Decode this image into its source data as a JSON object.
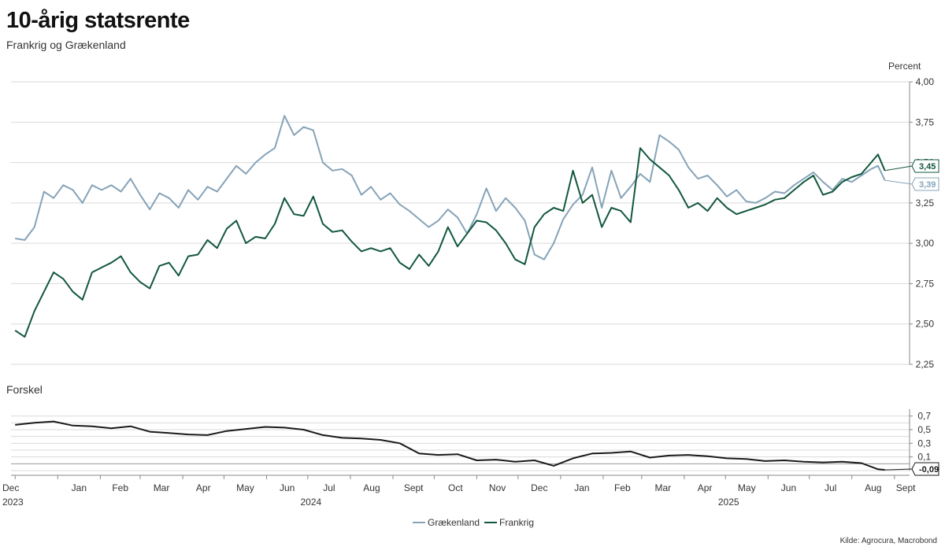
{
  "header": {
    "title": "10-årig statsrente",
    "subtitle": "Frankrig og Grækenland"
  },
  "source": "Kilde: Agrocura, Macrobond",
  "colors": {
    "greece": "#86a3b8",
    "france": "#12573d",
    "spread": "#1a1a1a",
    "grid": "#d9d9d9",
    "axis": "#888888"
  },
  "chart_data": [
    {
      "id": "main",
      "type": "line",
      "ylabel": "Percent",
      "ylim": [
        2.25,
        4.0
      ],
      "yticks": [
        "4,00",
        "3,75",
        "3,50",
        "3,25",
        "3,00",
        "2,75",
        "2,50",
        "2,25"
      ],
      "ytick_values": [
        4.0,
        3.75,
        3.5,
        3.25,
        3.0,
        2.75,
        2.5,
        2.25
      ],
      "x_range": [
        "2023-12-01",
        "2025-08-25"
      ],
      "grid": true,
      "legend": "bottom-center",
      "series": [
        {
          "name": "Grækenland",
          "color": "#86a3b8",
          "end_label": "3,39",
          "x": [
            "2023-12-01",
            "2023-12-08",
            "2023-12-15",
            "2023-12-22",
            "2023-12-29",
            "2024-01-05",
            "2024-01-12",
            "2024-01-19",
            "2024-01-26",
            "2024-02-02",
            "2024-02-09",
            "2024-02-16",
            "2024-02-23",
            "2024-03-01",
            "2024-03-08",
            "2024-03-15",
            "2024-03-22",
            "2024-03-29",
            "2024-04-05",
            "2024-04-12",
            "2024-04-19",
            "2024-04-26",
            "2024-05-03",
            "2024-05-10",
            "2024-05-17",
            "2024-05-24",
            "2024-05-31",
            "2024-06-07",
            "2024-06-14",
            "2024-06-21",
            "2024-06-28",
            "2024-07-05",
            "2024-07-12",
            "2024-07-19",
            "2024-07-26",
            "2024-08-02",
            "2024-08-09",
            "2024-08-16",
            "2024-08-23",
            "2024-08-30",
            "2024-09-06",
            "2024-09-13",
            "2024-09-20",
            "2024-09-27",
            "2024-10-04",
            "2024-10-11",
            "2024-10-18",
            "2024-10-25",
            "2024-11-01",
            "2024-11-08",
            "2024-11-15",
            "2024-11-22",
            "2024-11-29",
            "2024-12-06",
            "2024-12-13",
            "2024-12-20",
            "2024-12-27",
            "2025-01-03",
            "2025-01-10",
            "2025-01-17",
            "2025-01-24",
            "2025-01-31",
            "2025-02-07",
            "2025-02-14",
            "2025-02-21",
            "2025-02-28",
            "2025-03-07",
            "2025-03-14",
            "2025-03-21",
            "2025-03-28",
            "2025-04-04",
            "2025-04-11",
            "2025-04-18",
            "2025-04-25",
            "2025-05-02",
            "2025-05-09",
            "2025-05-16",
            "2025-05-23",
            "2025-05-30",
            "2025-06-06",
            "2025-06-13",
            "2025-06-20",
            "2025-06-27",
            "2025-07-04",
            "2025-07-11",
            "2025-07-18",
            "2025-07-25",
            "2025-08-01",
            "2025-08-08",
            "2025-08-15",
            "2025-08-20",
            "2025-08-25"
          ],
          "values": [
            3.03,
            3.02,
            3.1,
            3.32,
            3.28,
            3.36,
            3.33,
            3.25,
            3.36,
            3.33,
            3.36,
            3.32,
            3.4,
            3.3,
            3.21,
            3.31,
            3.28,
            3.22,
            3.33,
            3.27,
            3.35,
            3.32,
            3.4,
            3.48,
            3.43,
            3.5,
            3.55,
            3.59,
            3.79,
            3.67,
            3.72,
            3.7,
            3.5,
            3.45,
            3.46,
            3.42,
            3.3,
            3.35,
            3.27,
            3.31,
            3.24,
            3.2,
            3.15,
            3.1,
            3.14,
            3.21,
            3.16,
            3.06,
            3.18,
            3.34,
            3.2,
            3.28,
            3.22,
            3.14,
            2.93,
            2.9,
            3.0,
            3.15,
            3.24,
            3.3,
            3.47,
            3.22,
            3.45,
            3.28,
            3.35,
            3.43,
            3.38,
            3.67,
            3.63,
            3.58,
            3.47,
            3.4,
            3.42,
            3.36,
            3.29,
            3.33,
            3.26,
            3.25,
            3.28,
            3.32,
            3.31,
            3.36,
            3.4,
            3.44,
            3.38,
            3.33,
            3.4,
            3.38,
            3.42,
            3.46,
            3.48,
            3.39
          ]
        },
        {
          "name": "Frankrig",
          "color": "#12573d",
          "end_label": "3,45",
          "x": [
            "2023-12-01",
            "2023-12-08",
            "2023-12-15",
            "2023-12-22",
            "2023-12-29",
            "2024-01-05",
            "2024-01-12",
            "2024-01-19",
            "2024-01-26",
            "2024-02-02",
            "2024-02-09",
            "2024-02-16",
            "2024-02-23",
            "2024-03-01",
            "2024-03-08",
            "2024-03-15",
            "2024-03-22",
            "2024-03-29",
            "2024-04-05",
            "2024-04-12",
            "2024-04-19",
            "2024-04-26",
            "2024-05-03",
            "2024-05-10",
            "2024-05-17",
            "2024-05-24",
            "2024-05-31",
            "2024-06-07",
            "2024-06-14",
            "2024-06-21",
            "2024-06-28",
            "2024-07-05",
            "2024-07-12",
            "2024-07-19",
            "2024-07-26",
            "2024-08-02",
            "2024-08-09",
            "2024-08-16",
            "2024-08-23",
            "2024-08-30",
            "2024-09-06",
            "2024-09-13",
            "2024-09-20",
            "2024-09-27",
            "2024-10-04",
            "2024-10-11",
            "2024-10-18",
            "2024-10-25",
            "2024-11-01",
            "2024-11-08",
            "2024-11-15",
            "2024-11-22",
            "2024-11-29",
            "2024-12-06",
            "2024-12-13",
            "2024-12-20",
            "2024-12-27",
            "2025-01-03",
            "2025-01-10",
            "2025-01-17",
            "2025-01-24",
            "2025-01-31",
            "2025-02-07",
            "2025-02-14",
            "2025-02-21",
            "2025-02-28",
            "2025-03-07",
            "2025-03-14",
            "2025-03-21",
            "2025-03-28",
            "2025-04-04",
            "2025-04-11",
            "2025-04-18",
            "2025-04-25",
            "2025-05-02",
            "2025-05-09",
            "2025-05-16",
            "2025-05-23",
            "2025-05-30",
            "2025-06-06",
            "2025-06-13",
            "2025-06-20",
            "2025-06-27",
            "2025-07-04",
            "2025-07-11",
            "2025-07-18",
            "2025-07-25",
            "2025-08-01",
            "2025-08-08",
            "2025-08-15",
            "2025-08-20",
            "2025-08-25"
          ],
          "values": [
            2.46,
            2.42,
            2.58,
            2.7,
            2.82,
            2.78,
            2.7,
            2.65,
            2.82,
            2.85,
            2.88,
            2.92,
            2.82,
            2.76,
            2.72,
            2.86,
            2.88,
            2.8,
            2.92,
            2.93,
            3.02,
            2.97,
            3.09,
            3.14,
            3.0,
            3.04,
            3.03,
            3.12,
            3.28,
            3.18,
            3.17,
            3.29,
            3.12,
            3.07,
            3.08,
            3.01,
            2.95,
            2.97,
            2.95,
            2.97,
            2.88,
            2.84,
            2.93,
            2.86,
            2.95,
            3.1,
            2.98,
            3.06,
            3.14,
            3.13,
            3.08,
            3.0,
            2.9,
            2.87,
            3.1,
            3.18,
            3.22,
            3.2,
            3.45,
            3.25,
            3.3,
            3.1,
            3.22,
            3.2,
            3.13,
            3.59,
            3.52,
            3.47,
            3.42,
            3.33,
            3.22,
            3.25,
            3.2,
            3.28,
            3.22,
            3.18,
            3.2,
            3.22,
            3.24,
            3.27,
            3.28,
            3.33,
            3.38,
            3.42,
            3.3,
            3.32,
            3.38,
            3.41,
            3.43,
            3.5,
            3.55,
            3.45
          ]
        }
      ]
    },
    {
      "id": "spread",
      "type": "line",
      "title": "Forskel",
      "ylim": [
        -0.1,
        0.8
      ],
      "yticks": [
        "0,7",
        "0,5",
        "0,3",
        "0,1"
      ],
      "ytick_values": [
        0.7,
        0.5,
        0.3,
        0.1
      ],
      "grid": true,
      "series": [
        {
          "name": "Forskel",
          "color": "#1a1a1a",
          "end_label": "-0,09",
          "x": [
            "2023-12-01",
            "2023-12-15",
            "2023-12-29",
            "2024-01-12",
            "2024-01-26",
            "2024-02-09",
            "2024-02-23",
            "2024-03-08",
            "2024-03-22",
            "2024-04-05",
            "2024-04-19",
            "2024-05-03",
            "2024-05-17",
            "2024-05-31",
            "2024-06-14",
            "2024-06-28",
            "2024-07-12",
            "2024-07-26",
            "2024-08-09",
            "2024-08-23",
            "2024-09-06",
            "2024-09-20",
            "2024-10-04",
            "2024-10-18",
            "2024-11-01",
            "2024-11-15",
            "2024-11-29",
            "2024-12-13",
            "2024-12-27",
            "2025-01-10",
            "2025-01-24",
            "2025-02-07",
            "2025-02-21",
            "2025-03-07",
            "2025-03-21",
            "2025-04-04",
            "2025-04-18",
            "2025-05-02",
            "2025-05-16",
            "2025-05-30",
            "2025-06-13",
            "2025-06-27",
            "2025-07-11",
            "2025-07-25",
            "2025-08-08",
            "2025-08-20",
            "2025-08-25"
          ],
          "values": [
            0.57,
            0.6,
            0.62,
            0.56,
            0.55,
            0.52,
            0.55,
            0.47,
            0.45,
            0.43,
            0.42,
            0.48,
            0.51,
            0.54,
            0.53,
            0.5,
            0.42,
            0.38,
            0.37,
            0.35,
            0.3,
            0.15,
            0.13,
            0.14,
            0.05,
            0.06,
            0.03,
            0.05,
            -0.03,
            0.08,
            0.15,
            0.16,
            0.18,
            0.09,
            0.12,
            0.13,
            0.11,
            0.08,
            0.07,
            0.04,
            0.05,
            0.03,
            0.02,
            0.03,
            0.01,
            -0.08,
            -0.09
          ]
        }
      ]
    }
  ],
  "x_axis": {
    "months": [
      {
        "label": "Dec",
        "date": "2023-12-01"
      },
      {
        "label": "Jan",
        "date": "2024-01-01"
      },
      {
        "label": "Feb",
        "date": "2024-02-01"
      },
      {
        "label": "Mar",
        "date": "2024-03-01"
      },
      {
        "label": "Apr",
        "date": "2024-04-01"
      },
      {
        "label": "May",
        "date": "2024-05-01"
      },
      {
        "label": "Jun",
        "date": "2024-06-01"
      },
      {
        "label": "Jul",
        "date": "2024-07-01"
      },
      {
        "label": "Aug",
        "date": "2024-08-01"
      },
      {
        "label": "Sept",
        "date": "2024-09-01"
      },
      {
        "label": "Oct",
        "date": "2024-10-01"
      },
      {
        "label": "Nov",
        "date": "2024-11-01"
      },
      {
        "label": "Dec",
        "date": "2024-12-01"
      },
      {
        "label": "Jan",
        "date": "2025-01-01"
      },
      {
        "label": "Feb",
        "date": "2025-02-01"
      },
      {
        "label": "Mar",
        "date": "2025-03-01"
      },
      {
        "label": "Apr",
        "date": "2025-04-01"
      },
      {
        "label": "May",
        "date": "2025-05-01"
      },
      {
        "label": "Jun",
        "date": "2025-06-01"
      },
      {
        "label": "Jul",
        "date": "2025-07-01"
      },
      {
        "label": "Aug",
        "date": "2025-08-01"
      },
      {
        "label": "Sept",
        "date": "2025-09-01"
      }
    ],
    "years": [
      {
        "label": "2023",
        "date": "2023-12-01"
      },
      {
        "label": "2024",
        "date": "2024-07-01"
      },
      {
        "label": "2025",
        "date": "2025-05-01"
      }
    ]
  }
}
